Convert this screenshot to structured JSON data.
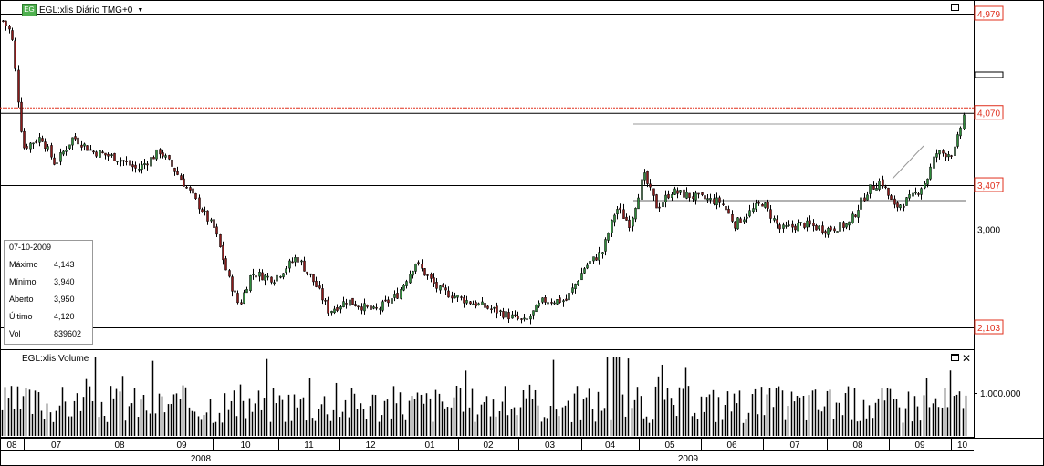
{
  "header": {
    "symbol_label": "EGL:xlis Diário TMG+0",
    "icon": "EG"
  },
  "volume_pane": {
    "title": "EGL:xlis Volume",
    "axis_label": "1.000.000"
  },
  "info_box": {
    "date": "07-10-2009",
    "rows": [
      {
        "key": "Máximo",
        "value": "4,143"
      },
      {
        "key": "Mínimo",
        "value": "3,940"
      },
      {
        "key": "Aberto",
        "value": "3,950"
      },
      {
        "key": "Último",
        "value": "4,120"
      },
      {
        "key": "Vol",
        "value": "839602"
      }
    ]
  },
  "colors": {
    "up": "#2e8b3a",
    "down": "#8b1a1a",
    "price_marker": "#e0301e",
    "grid": "#000000"
  },
  "chart_data": {
    "type": "candlestick",
    "price_axis": {
      "labels": [
        {
          "value": 4.979,
          "text": "4,979",
          "highlight": true
        },
        {
          "value": 4.07,
          "text": "4,070",
          "highlight": true
        },
        {
          "value": 3.407,
          "text": "3,407",
          "highlight": true
        },
        {
          "value": 3.0,
          "text": "3,000",
          "highlight": false
        },
        {
          "value": 2.103,
          "text": "2,103",
          "highlight": true
        }
      ],
      "range": [
        2.0,
        5.1
      ]
    },
    "horizontal_levels": [
      4.979,
      4.07,
      3.407,
      2.103
    ],
    "current_price": 4.12,
    "months": [
      "08",
      "07",
      "08",
      "09",
      "10",
      "11",
      "12",
      "01",
      "02",
      "03",
      "04",
      "05",
      "06",
      "07",
      "08",
      "09",
      "10"
    ],
    "years": [
      "2008",
      "2009"
    ],
    "price_path": [
      [
        0,
        4.95
      ],
      [
        12,
        4.8
      ],
      [
        25,
        3.75
      ],
      [
        45,
        3.85
      ],
      [
        60,
        3.6
      ],
      [
        80,
        3.85
      ],
      [
        100,
        3.72
      ],
      [
        130,
        3.65
      ],
      [
        150,
        3.55
      ],
      [
        175,
        3.72
      ],
      [
        195,
        3.5
      ],
      [
        215,
        3.25
      ],
      [
        235,
        3.0
      ],
      [
        250,
        2.55
      ],
      [
        262,
        2.3
      ],
      [
        275,
        2.6
      ],
      [
        300,
        2.55
      ],
      [
        325,
        2.75
      ],
      [
        345,
        2.5
      ],
      [
        360,
        2.25
      ],
      [
        380,
        2.35
      ],
      [
        410,
        2.25
      ],
      [
        435,
        2.4
      ],
      [
        455,
        2.7
      ],
      [
        480,
        2.45
      ],
      [
        510,
        2.35
      ],
      [
        545,
        2.25
      ],
      [
        575,
        2.15
      ],
      [
        595,
        2.35
      ],
      [
        620,
        2.35
      ],
      [
        640,
        2.65
      ],
      [
        660,
        2.8
      ],
      [
        675,
        3.2
      ],
      [
        690,
        3.05
      ],
      [
        705,
        3.5
      ],
      [
        720,
        3.2
      ],
      [
        735,
        3.35
      ],
      [
        760,
        3.3
      ],
      [
        790,
        3.25
      ],
      [
        805,
        3.05
      ],
      [
        835,
        3.25
      ],
      [
        855,
        3.0
      ],
      [
        880,
        3.05
      ],
      [
        905,
        3.0
      ],
      [
        930,
        3.05
      ],
      [
        950,
        3.35
      ],
      [
        965,
        3.45
      ],
      [
        980,
        3.2
      ],
      [
        1000,
        3.3
      ],
      [
        1015,
        3.45
      ],
      [
        1025,
        3.7
      ],
      [
        1045,
        3.7
      ],
      [
        1058,
        4.12
      ]
    ],
    "volume_axis_value": 1000000
  }
}
